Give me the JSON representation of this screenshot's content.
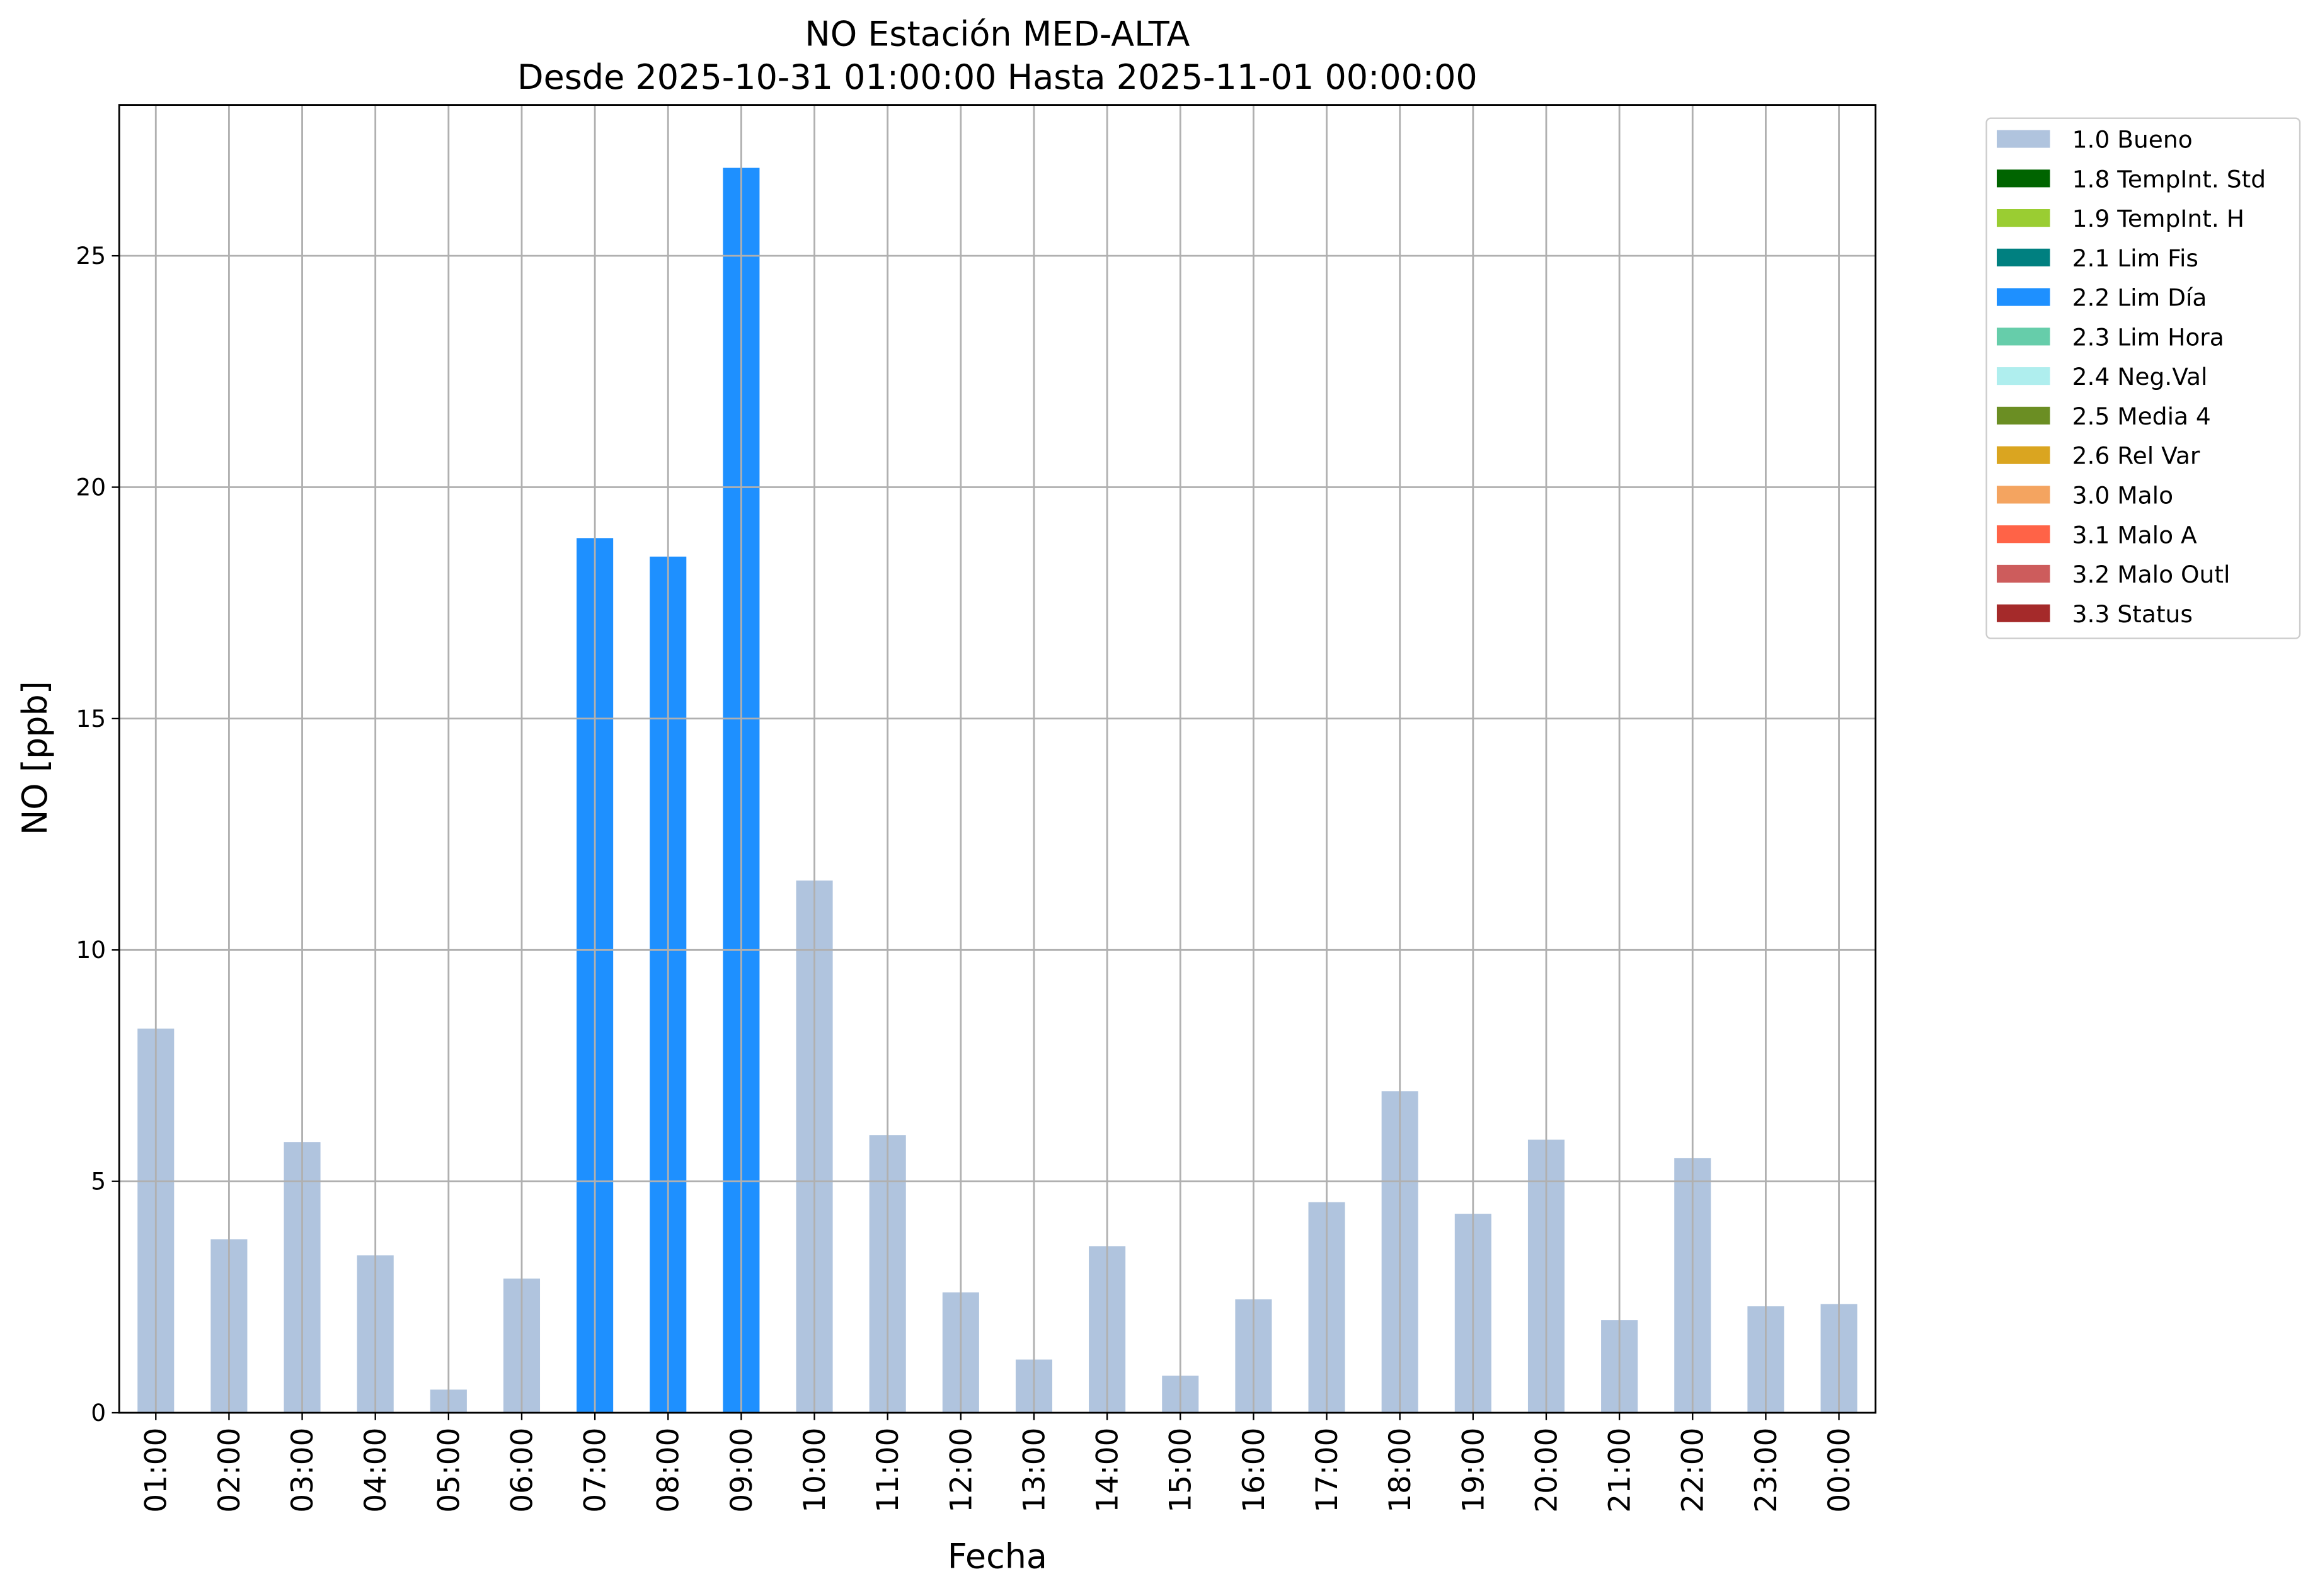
{
  "chart_data": {
    "type": "bar",
    "stacked": true,
    "title": "NO Estación MED-ALTA",
    "subtitle": "Desde 2025-10-31 01:00:00 Hasta 2025-11-01 00:00:00",
    "x_label": "Fecha",
    "y_label": "NO [ppb]",
    "categories": [
      "01:00",
      "02:00",
      "03:00",
      "04:00",
      "05:00",
      "06:00",
      "07:00",
      "08:00",
      "09:00",
      "10:00",
      "11:00",
      "12:00",
      "13:00",
      "14:00",
      "15:00",
      "16:00",
      "17:00",
      "18:00",
      "19:00",
      "20:00",
      "21:00",
      "22:00",
      "23:00",
      "00:00"
    ],
    "series": [
      {
        "name": "1.0 Bueno",
        "color": "#b0c4de",
        "values": [
          8.3,
          3.75,
          5.85,
          3.4,
          0.5,
          2.9,
          null,
          null,
          null,
          11.5,
          6.0,
          2.6,
          1.15,
          3.6,
          0.8,
          2.45,
          4.55,
          6.95,
          4.3,
          5.9,
          2.0,
          5.5,
          2.3,
          2.35
        ]
      },
      {
        "name": "1.8 TempInt. Std",
        "color": "#006400",
        "values": [
          null,
          null,
          null,
          null,
          null,
          null,
          null,
          null,
          null,
          null,
          null,
          null,
          null,
          null,
          null,
          null,
          null,
          null,
          null,
          null,
          null,
          null,
          null,
          null
        ]
      },
      {
        "name": "1.9 TempInt. H",
        "color": "#9acd32",
        "values": [
          null,
          null,
          null,
          null,
          null,
          null,
          null,
          null,
          null,
          null,
          null,
          null,
          null,
          null,
          null,
          null,
          null,
          null,
          null,
          null,
          null,
          null,
          null,
          null
        ]
      },
      {
        "name": "2.1 Lim Fis",
        "color": "#008080",
        "values": [
          null,
          null,
          null,
          null,
          null,
          null,
          null,
          null,
          null,
          null,
          null,
          null,
          null,
          null,
          null,
          null,
          null,
          null,
          null,
          null,
          null,
          null,
          null,
          null
        ]
      },
      {
        "name": "2.2 Lim Día",
        "color": "#1e90ff",
        "values": [
          null,
          null,
          null,
          null,
          null,
          null,
          18.9,
          18.5,
          26.9,
          null,
          null,
          null,
          null,
          null,
          null,
          null,
          null,
          null,
          null,
          null,
          null,
          null,
          null,
          null
        ]
      },
      {
        "name": "2.3 Lim Hora",
        "color": "#66cdaa",
        "values": [
          null,
          null,
          null,
          null,
          null,
          null,
          null,
          null,
          null,
          null,
          null,
          null,
          null,
          null,
          null,
          null,
          null,
          null,
          null,
          null,
          null,
          null,
          null,
          null
        ]
      },
      {
        "name": "2.4 Neg.Val",
        "color": "#afeeee",
        "values": [
          null,
          null,
          null,
          null,
          null,
          null,
          null,
          null,
          null,
          null,
          null,
          null,
          null,
          null,
          null,
          null,
          null,
          null,
          null,
          null,
          null,
          null,
          null,
          null
        ]
      },
      {
        "name": "2.5 Media 4",
        "color": "#6b8e23",
        "values": [
          null,
          null,
          null,
          null,
          null,
          null,
          null,
          null,
          null,
          null,
          null,
          null,
          null,
          null,
          null,
          null,
          null,
          null,
          null,
          null,
          null,
          null,
          null,
          null
        ]
      },
      {
        "name": "2.6 Rel Var",
        "color": "#daa520",
        "values": [
          null,
          null,
          null,
          null,
          null,
          null,
          null,
          null,
          null,
          null,
          null,
          null,
          null,
          null,
          null,
          null,
          null,
          null,
          null,
          null,
          null,
          null,
          null,
          null
        ]
      },
      {
        "name": "3.0 Malo",
        "color": "#f4a460",
        "values": [
          null,
          null,
          null,
          null,
          null,
          null,
          null,
          null,
          null,
          null,
          null,
          null,
          null,
          null,
          null,
          null,
          null,
          null,
          null,
          null,
          null,
          null,
          null,
          null
        ]
      },
      {
        "name": "3.1 Malo A",
        "color": "#ff6347",
        "values": [
          null,
          null,
          null,
          null,
          null,
          null,
          null,
          null,
          null,
          null,
          null,
          null,
          null,
          null,
          null,
          null,
          null,
          null,
          null,
          null,
          null,
          null,
          null,
          null
        ]
      },
      {
        "name": "3.2 Malo Outl",
        "color": "#cd5c5c",
        "values": [
          null,
          null,
          null,
          null,
          null,
          null,
          null,
          null,
          null,
          null,
          null,
          null,
          null,
          null,
          null,
          null,
          null,
          null,
          null,
          null,
          null,
          null,
          null,
          null
        ]
      },
      {
        "name": "3.3 Status",
        "color": "#a52a2a",
        "values": [
          null,
          null,
          null,
          null,
          null,
          null,
          null,
          null,
          null,
          null,
          null,
          null,
          null,
          null,
          null,
          null,
          null,
          null,
          null,
          null,
          null,
          null,
          null,
          null
        ]
      }
    ],
    "ylim": [
      0,
      28.26
    ],
    "yticks": [
      0,
      5,
      10,
      15,
      20,
      25
    ],
    "grid": true
  }
}
